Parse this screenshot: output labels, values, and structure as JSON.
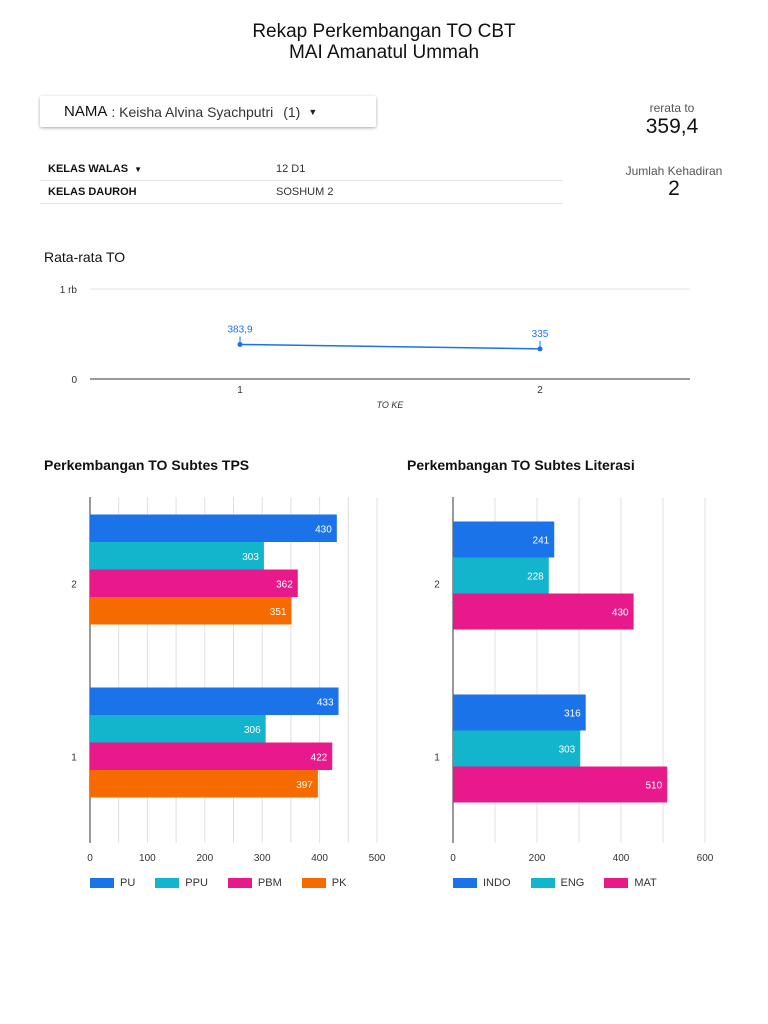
{
  "header": {
    "title_line1": "Rekap Perkembangan TO CBT",
    "title_line2": "MAI Amanatul Ummah"
  },
  "name_filter": {
    "label": "NAMA",
    "value": ": Keisha Alvina Syachputri",
    "count": "(1)"
  },
  "kpi": {
    "rerata_label": "rerata to",
    "rerata_value": "359,4",
    "kehadiran_label": "Jumlah Kehadiran",
    "kehadiran_value": "2"
  },
  "kelas_table": {
    "rows": [
      {
        "key": "KELAS WALAS",
        "value": "12 D1"
      },
      {
        "key": "KELAS DAUROH",
        "value": "SOSHUM 2"
      }
    ]
  },
  "colors": {
    "blue": "#1a73e8",
    "teal": "#12b5cb",
    "pink": "#e8198b",
    "orange": "#f56b00",
    "grid": "#e0e0e0",
    "axis": "#333333"
  },
  "chart_data": [
    {
      "id": "rata_rata",
      "type": "line",
      "title": "Rata-rata TO",
      "xlabel": "TO KE",
      "ylabel": "",
      "x": [
        "1",
        "2"
      ],
      "values": [
        383.9,
        335
      ],
      "value_labels": [
        "383,9",
        "335"
      ],
      "y_ticks": [
        0,
        1000
      ],
      "y_tick_labels": [
        "0",
        "1 rb"
      ],
      "ylim": [
        0,
        1000
      ],
      "grid": true
    },
    {
      "id": "tps",
      "type": "bar",
      "orientation": "horizontal",
      "title": "Perkembangan TO Subtes TPS",
      "categories": [
        "2",
        "1"
      ],
      "series": [
        {
          "name": "PU",
          "values": [
            430,
            433
          ]
        },
        {
          "name": "PPU",
          "values": [
            303,
            306
          ]
        },
        {
          "name": "PBM",
          "values": [
            362,
            422
          ]
        },
        {
          "name": "PK",
          "values": [
            351,
            397
          ]
        }
      ],
      "x_ticks": [
        0,
        100,
        200,
        300,
        400,
        500
      ],
      "xlim": [
        0,
        500
      ],
      "legend": "bottom-left",
      "grid": true
    },
    {
      "id": "literasi",
      "type": "bar",
      "orientation": "horizontal",
      "title": "Perkembangan TO Subtes Literasi",
      "categories": [
        "2",
        "1"
      ],
      "series": [
        {
          "name": "INDO",
          "values": [
            241,
            316
          ]
        },
        {
          "name": "ENG",
          "values": [
            228,
            303
          ]
        },
        {
          "name": "MAT",
          "values": [
            430,
            510
          ]
        }
      ],
      "x_ticks": [
        0,
        200,
        400,
        600
      ],
      "xlim": [
        0,
        600
      ],
      "legend": "bottom-left",
      "grid": true
    }
  ]
}
